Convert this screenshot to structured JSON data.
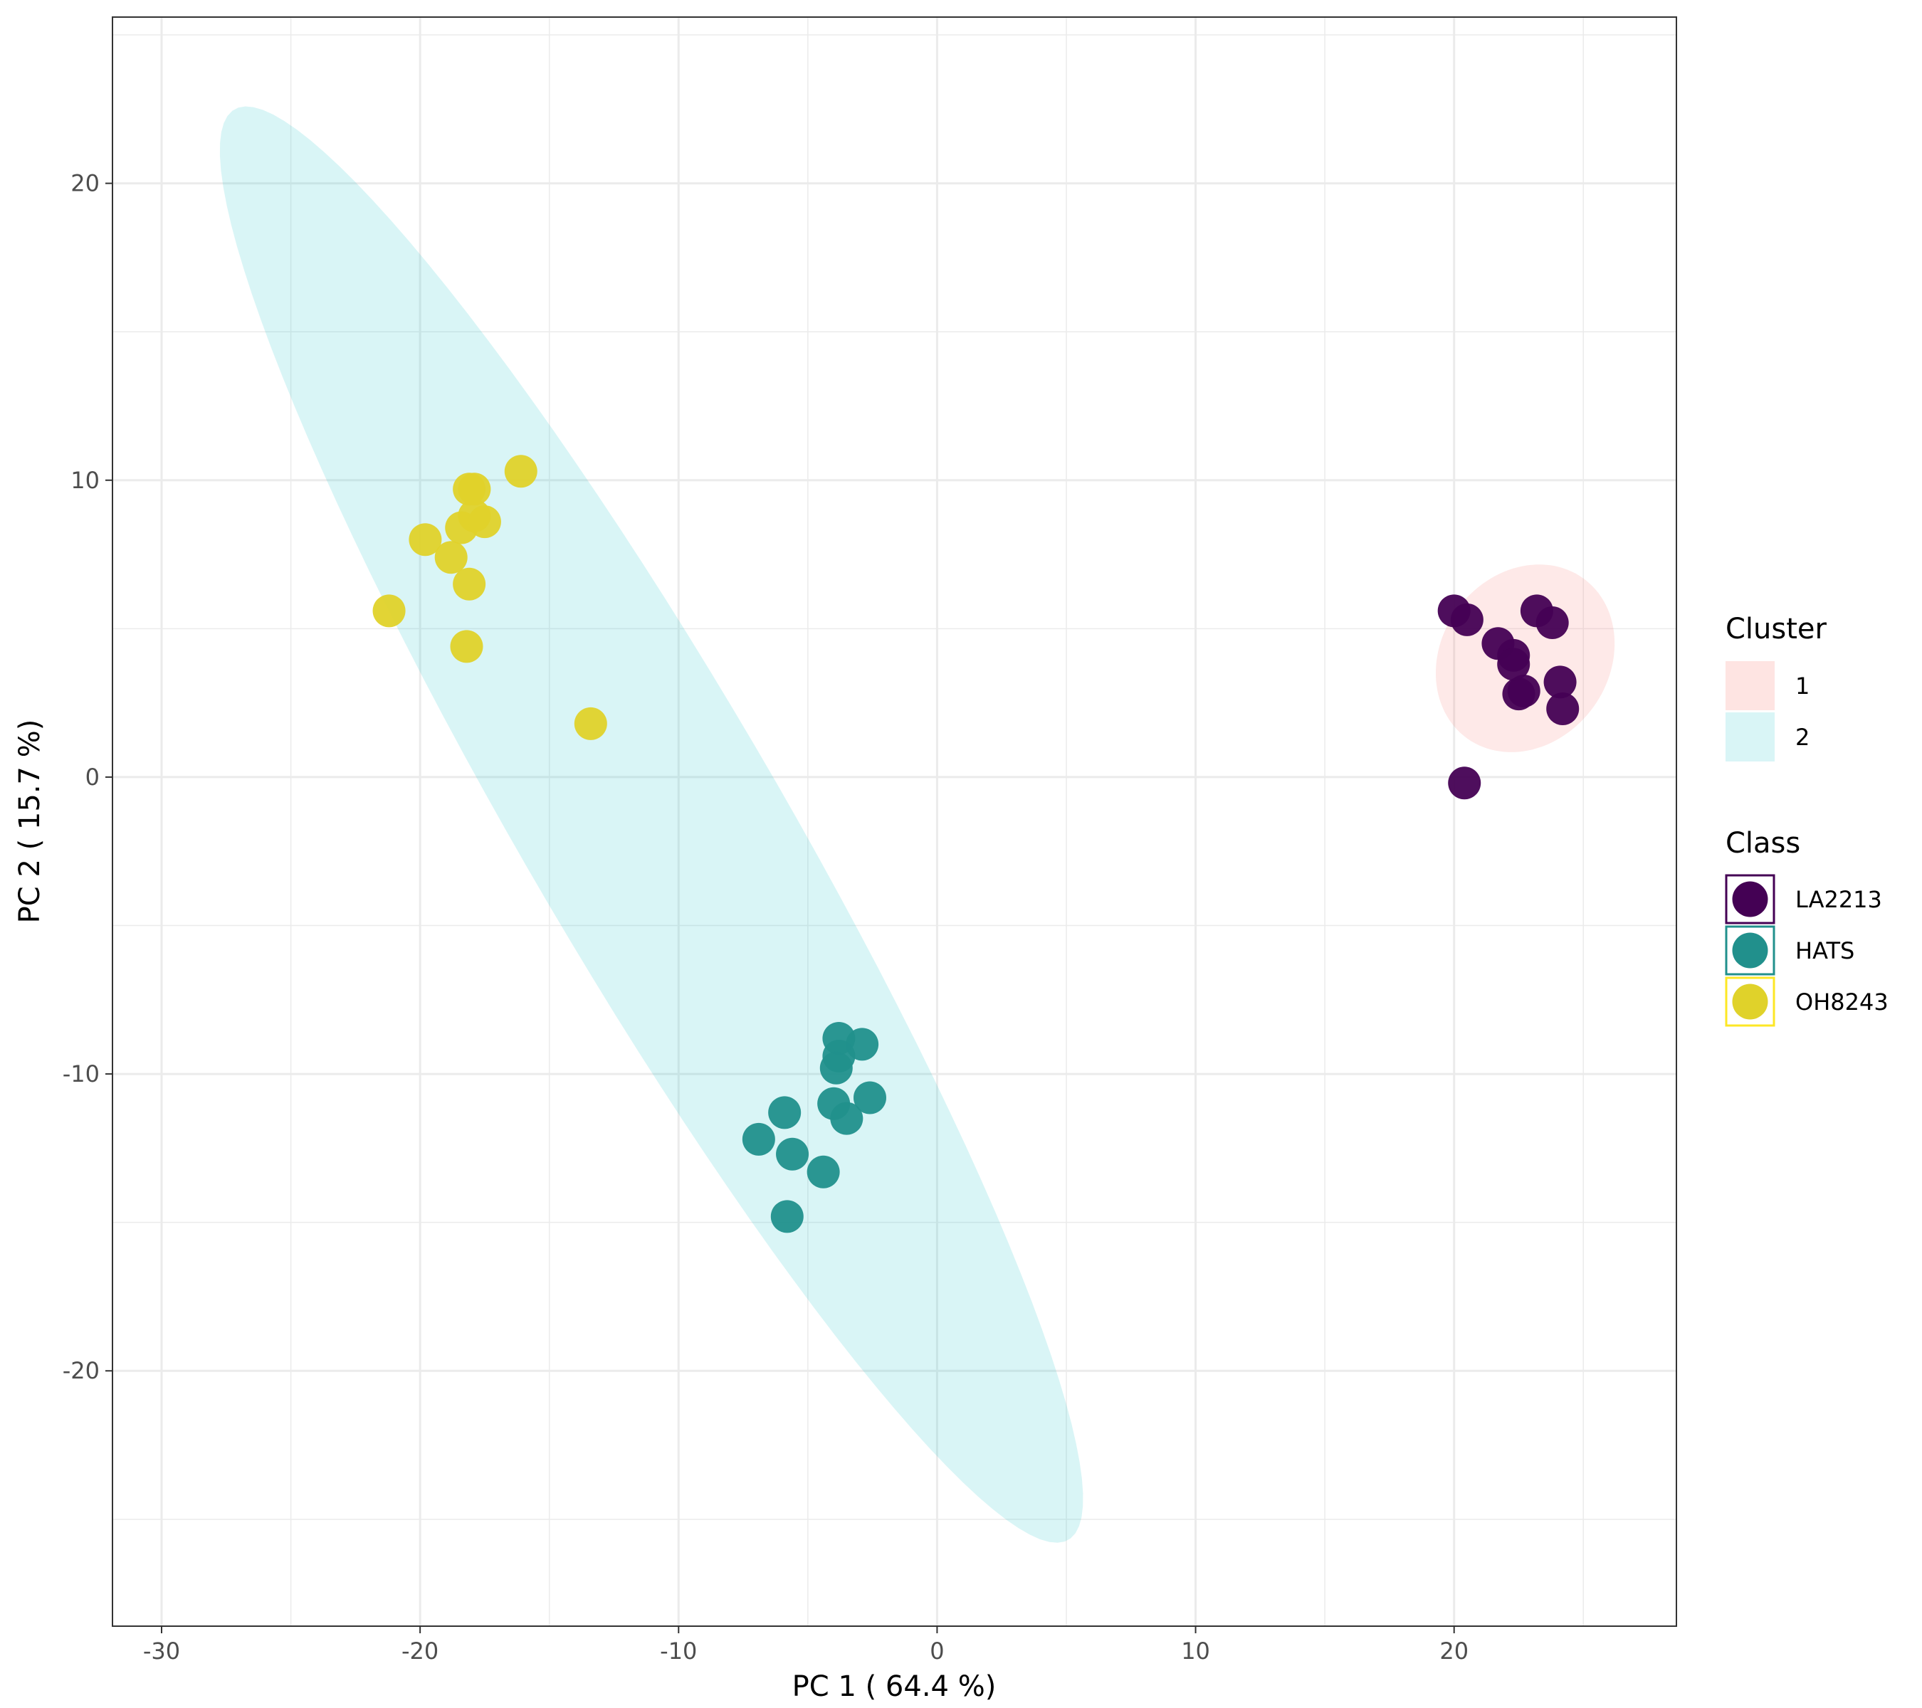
{
  "chart_data": {
    "type": "scatter",
    "xlabel": "PC 1 ( 64.4 %)",
    "ylabel": "PC 2 ( 15.7 %)",
    "xlim": [
      -31.9,
      28.6
    ],
    "ylim": [
      -28.6,
      25.6
    ],
    "x_ticks": [
      -30,
      -20,
      -10,
      0,
      10,
      20
    ],
    "x_tick_labels": [
      "-30",
      "-20",
      "-10",
      "0",
      "10",
      "20"
    ],
    "y_ticks": [
      -20,
      -10,
      0,
      10,
      20
    ],
    "y_tick_labels": [
      "-20",
      "-10",
      "0",
      "10",
      "20"
    ],
    "grid": true,
    "legend_position": "right",
    "legends": [
      {
        "title": "Cluster",
        "entries": [
          {
            "label": "1",
            "color": "#F8766D"
          },
          {
            "label": "2",
            "color": "#00BFC4"
          }
        ]
      },
      {
        "title": "Class",
        "entries": [
          {
            "label": "LA2213",
            "color": "#440154"
          },
          {
            "label": "HATS",
            "color": "#21908C"
          },
          {
            "label": "OH8243",
            "color": "#E0D22A"
          }
        ]
      }
    ],
    "clusters": [
      {
        "name": "1",
        "color": "#F8766D",
        "ellipse": {
          "center": [
            22.75,
            4.0
          ],
          "semi_axes": [
            3.6,
            3.0
          ],
          "rotation_deg": 30
        }
      },
      {
        "name": "2",
        "color": "#00BFC4",
        "ellipse": {
          "center": [
            -11.05,
            -1.6
          ],
          "semi_axes": [
            29.0,
            4.8
          ],
          "rotation_deg": -56
        }
      }
    ],
    "series": [
      {
        "name": "LA2213",
        "color": "#440154",
        "points": [
          [
            20.4,
            -0.2
          ],
          [
            20.0,
            5.6
          ],
          [
            20.5,
            5.3
          ],
          [
            21.7,
            4.5
          ],
          [
            22.3,
            4.1
          ],
          [
            22.3,
            3.8
          ],
          [
            22.5,
            2.8
          ],
          [
            22.7,
            2.9
          ],
          [
            23.2,
            5.6
          ],
          [
            23.8,
            5.2
          ],
          [
            24.1,
            3.2
          ],
          [
            24.2,
            2.3
          ]
        ]
      },
      {
        "name": "HATS",
        "color": "#21908C",
        "points": [
          [
            -3.8,
            -8.8
          ],
          [
            -2.9,
            -9.0
          ],
          [
            -3.8,
            -9.4
          ],
          [
            -3.9,
            -9.8
          ],
          [
            -2.6,
            -10.8
          ],
          [
            -4.0,
            -11.0
          ],
          [
            -3.5,
            -11.5
          ],
          [
            -5.9,
            -11.3
          ],
          [
            -6.9,
            -12.2
          ],
          [
            -5.6,
            -12.7
          ],
          [
            -4.4,
            -13.3
          ],
          [
            -5.8,
            -14.8
          ]
        ]
      },
      {
        "name": "OH8243",
        "color": "#E0D22A",
        "points": [
          [
            -21.2,
            5.6
          ],
          [
            -19.8,
            8.0
          ],
          [
            -18.8,
            7.4
          ],
          [
            -18.4,
            8.4
          ],
          [
            -18.1,
            9.7
          ],
          [
            -17.9,
            9.7
          ],
          [
            -17.9,
            8.8
          ],
          [
            -17.5,
            8.6
          ],
          [
            -18.1,
            6.5
          ],
          [
            -18.2,
            4.4
          ],
          [
            -16.1,
            10.3
          ],
          [
            -13.4,
            1.8
          ]
        ]
      }
    ]
  }
}
